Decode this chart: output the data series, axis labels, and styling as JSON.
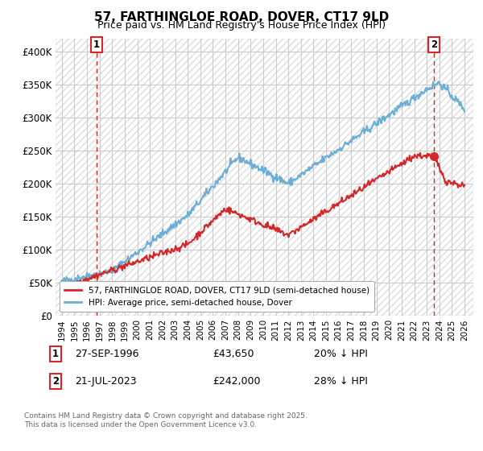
{
  "title": "57, FARTHINGLOE ROAD, DOVER, CT17 9LD",
  "subtitle": "Price paid vs. HM Land Registry's House Price Index (HPI)",
  "ylim": [
    0,
    420000
  ],
  "yticks": [
    0,
    50000,
    100000,
    150000,
    200000,
    250000,
    300000,
    350000,
    400000
  ],
  "ytick_labels": [
    "£0",
    "£50K",
    "£100K",
    "£150K",
    "£200K",
    "£250K",
    "£300K",
    "£350K",
    "£400K"
  ],
  "hpi_color": "#6baed6",
  "price_color": "#d62728",
  "grid_color": "#cccccc",
  "bg_color": "#f0f0f0",
  "hatch_color": "#dddddd",
  "sale1_year": 1996.75,
  "sale1_price": 43650,
  "sale1_label": "1",
  "sale1_date": "27-SEP-1996",
  "sale1_hpi_pct": "20% ↓ HPI",
  "sale2_year": 2023.55,
  "sale2_price": 242000,
  "sale2_label": "2",
  "sale2_date": "21-JUL-2023",
  "sale2_hpi_pct": "28% ↓ HPI",
  "legend_property": "57, FARTHINGLOE ROAD, DOVER, CT17 9LD (semi-detached house)",
  "legend_hpi": "HPI: Average price, semi-detached house, Dover",
  "footnote": "Contains HM Land Registry data © Crown copyright and database right 2025.\nThis data is licensed under the Open Government Licence v3.0.",
  "xstart": 1993.5,
  "xend": 2026.7
}
